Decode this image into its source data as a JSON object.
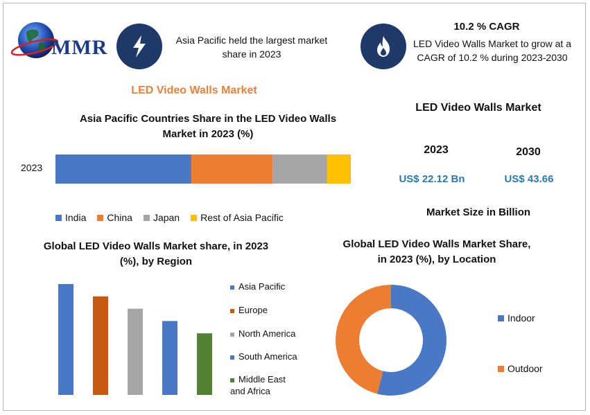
{
  "logo": {
    "text": "MMR"
  },
  "info_box": {
    "text": "Asia Pacific held the largest market share in 2023",
    "icon": "lightning-icon"
  },
  "cagr_box": {
    "title": "10.2 % CAGR",
    "text": "LED Video Walls Market to grow at a CAGR of 10.2 % during 2023-2030",
    "icon": "flame-icon"
  },
  "page_title": "LED Video Walls Market",
  "market_size": {
    "title": "LED Video Walls Market",
    "year1": "2023",
    "value1": "US$ 22.12 Bn",
    "year2": "2030",
    "value2": "US$ 43.66",
    "unit_label": "Market Size in Billion"
  },
  "colors": {
    "blue": "#4a78c4",
    "orange": "#ed7d31",
    "gray": "#a5a5a5",
    "yellow": "#ffc000",
    "dark_orange": "#c55a11",
    "green": "#548235",
    "navy": "#1f3a68",
    "value_blue": "#2a7ab8"
  },
  "chart_data": [
    {
      "type": "bar",
      "orientation": "horizontal-stacked",
      "title": "Asia Pacific Countries Share in the  LED Video Walls Market in 2023 (%)",
      "categories": [
        "2023"
      ],
      "series": [
        {
          "name": "India",
          "values": [
            46
          ],
          "color": "#4a78c4"
        },
        {
          "name": "China",
          "values": [
            27.5
          ],
          "color": "#ed7d31"
        },
        {
          "name": "Japan",
          "values": [
            18.5
          ],
          "color": "#a5a5a5"
        },
        {
          "name": "Rest of Asia Pacific",
          "values": [
            8
          ],
          "color": "#ffc000"
        }
      ],
      "legend": "bottom"
    },
    {
      "type": "bar",
      "title": "Global LED Video Walls Market share, in 2023 (%), by Region",
      "categories": [
        "Asia Pacific",
        "Europe",
        "North America",
        "South America",
        "Middle East and Africa"
      ],
      "values": [
        36,
        32,
        28,
        24,
        20
      ],
      "colors": [
        "#4a78c4",
        "#c55a11",
        "#a5a5a5",
        "#4a78c4",
        "#548235"
      ],
      "legend": "right"
    },
    {
      "type": "pie",
      "subtype": "donut",
      "title": "Global LED Video Walls Market Share, in 2023 (%), by Location",
      "labels": [
        "Indoor",
        "Outdoor"
      ],
      "values": [
        54,
        46
      ],
      "colors": [
        "#4a78c4",
        "#ed7d31"
      ],
      "legend": "right"
    }
  ]
}
